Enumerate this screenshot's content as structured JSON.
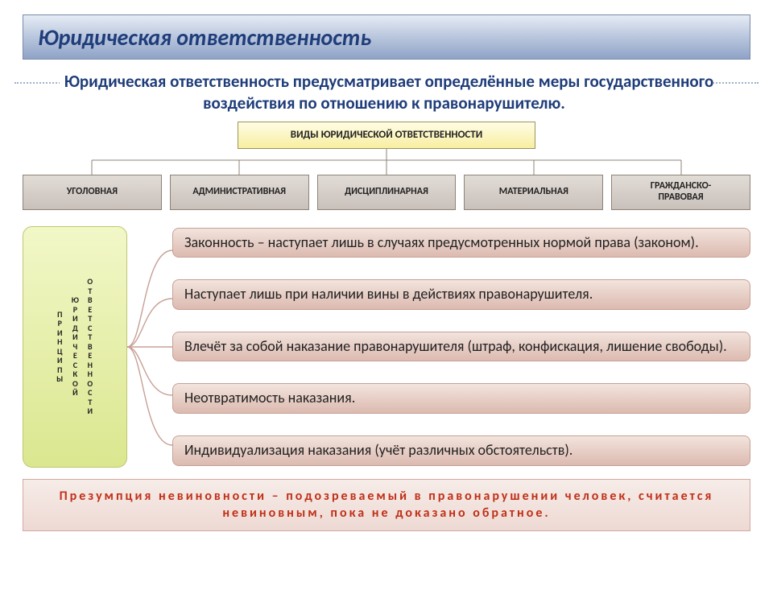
{
  "title": "Юридическая ответственность",
  "subtitle": "Юридическая ответственность предусматривает определённые меры государственного воздействия по отношению к правонарушителю.",
  "org": {
    "root": "ВИДЫ ЮРИДИЧЕСКОЙ ОТВЕТСТВЕННОСТИ",
    "children": [
      "УГОЛОВНАЯ",
      "АДМИНИСТРАТИВНАЯ",
      "ДИСЦИПЛИНАРНАЯ",
      "МАТЕРИАЛЬНАЯ",
      "ГРАЖДАНСКО-\nПРАВОВАЯ"
    ],
    "root_bg_from": "#fffde6",
    "root_bg_to": "#f8eea0",
    "child_bg_from": "#e2dcd7",
    "child_bg_to": "#c9c0ba",
    "line_color": "#8e8378"
  },
  "principles": {
    "label_cols": [
      "ПРИНЦИПЫ",
      "ЮРИДИЧЕСКОЙ",
      "ОТВЕТСТВЕННОСТИ"
    ],
    "items": [
      "Законность – наступает лишь в случаях предусмотренных нормой права (законом).",
      "Наступает лишь при  наличии вины в действиях правонарушителя.",
      "Влечёт за собой наказание правонарушителя (штраф, конфискация, лишение свободы).",
      "Неотвратимость наказания.",
      "Индивидуализация наказания (учёт различных обстоятельств)."
    ],
    "label_bg_from": "#f2f7c8",
    "label_bg_to": "#dbe78f",
    "item_bg_from": "#f2e4dd",
    "item_bg_to": "#dcbab0",
    "connector_color": "#c7a095"
  },
  "footer": "Презумпция невиновности – подозреваемый в правонарушении человек, считается невиновным, пока не доказано обратное.",
  "colors": {
    "title_text": "#1f3d7a",
    "footer_text": "#c03018"
  }
}
